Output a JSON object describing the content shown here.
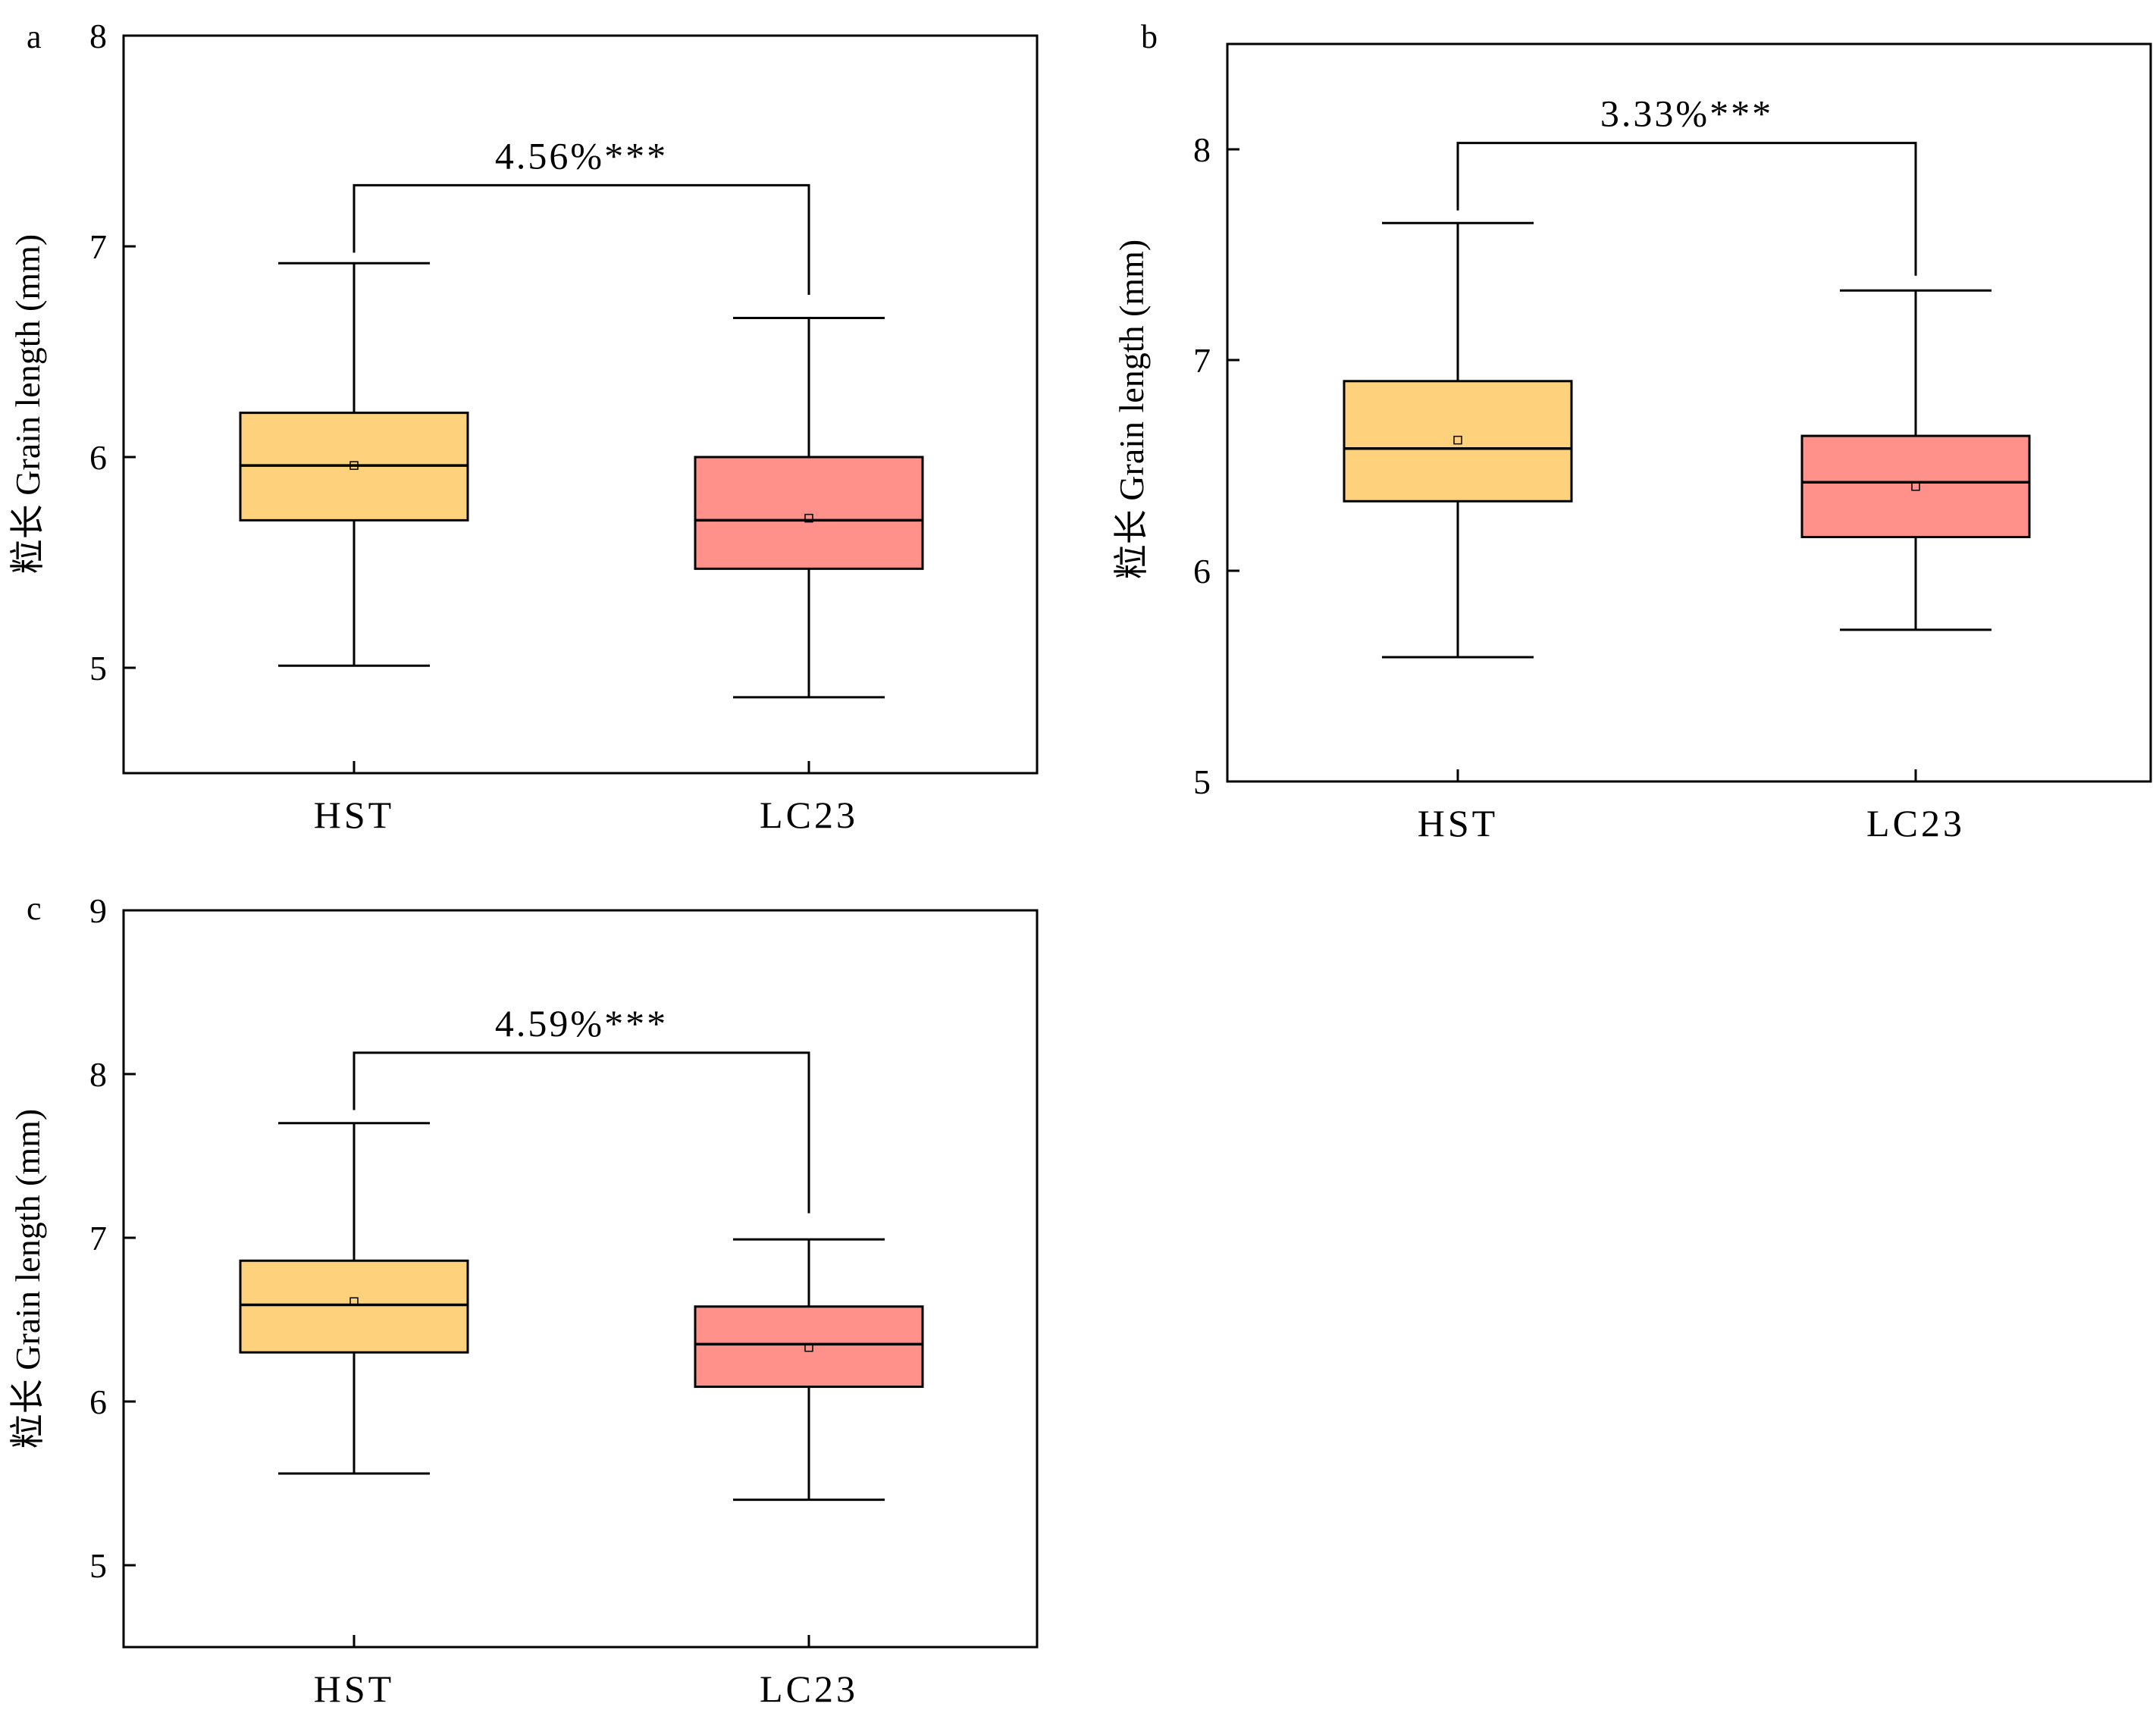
{
  "colors": {
    "hst_box": "#fed17d",
    "lc23_box": "#ff918a",
    "line": "#000000",
    "background": "#ffffff"
  },
  "chart_data": [
    {
      "type": "box",
      "panel": "a",
      "ylabel": "粒长 Grain length (mm)",
      "ylim": [
        4.5,
        8
      ],
      "yticks": [
        5,
        6,
        7,
        8
      ],
      "categories": [
        "HST",
        "LC23"
      ],
      "boxes": [
        {
          "category": "HST",
          "whisker_low": 5.01,
          "q1": 5.7,
          "median": 5.96,
          "q3": 6.21,
          "whisker_high": 6.92,
          "mean": 5.96
        },
        {
          "category": "LC23",
          "whisker_low": 4.86,
          "q1": 5.47,
          "median": 5.7,
          "q3": 6.0,
          "whisker_high": 6.66,
          "mean": 5.71
        }
      ],
      "comparison": {
        "label": "4.56%***",
        "bar_y": 7.29,
        "left_drop": 6.97,
        "right_drop": 6.77
      }
    },
    {
      "type": "box",
      "panel": "b",
      "ylabel": "粒长 Grain length (mm)",
      "ylim": [
        5,
        8.5
      ],
      "yticks": [
        5,
        6,
        7,
        8
      ],
      "categories": [
        "HST",
        "LC23"
      ],
      "boxes": [
        {
          "category": "HST",
          "whisker_low": 5.59,
          "q1": 6.33,
          "median": 6.58,
          "q3": 6.9,
          "whisker_high": 7.65,
          "mean": 6.62
        },
        {
          "category": "LC23",
          "whisker_low": 5.72,
          "q1": 6.16,
          "median": 6.42,
          "q3": 6.64,
          "whisker_high": 7.33,
          "mean": 6.4
        }
      ],
      "comparison": {
        "label": "3.33%***",
        "bar_y": 8.03,
        "left_drop": 7.71,
        "right_drop": 7.4
      }
    },
    {
      "type": "box",
      "panel": "c",
      "ylabel": "粒长 Grain length (mm)",
      "ylim": [
        4.5,
        9
      ],
      "yticks": [
        5,
        6,
        7,
        8,
        9
      ],
      "categories": [
        "HST",
        "LC23"
      ],
      "boxes": [
        {
          "category": "HST",
          "whisker_low": 5.56,
          "q1": 6.3,
          "median": 6.59,
          "q3": 6.86,
          "whisker_high": 7.7,
          "mean": 6.61
        },
        {
          "category": "LC23",
          "whisker_low": 5.4,
          "q1": 6.09,
          "median": 6.35,
          "q3": 6.58,
          "whisker_high": 6.99,
          "mean": 6.33
        }
      ],
      "comparison": {
        "label": "4.59%***",
        "bar_y": 8.13,
        "left_drop": 7.78,
        "right_drop": 7.15
      }
    }
  ]
}
